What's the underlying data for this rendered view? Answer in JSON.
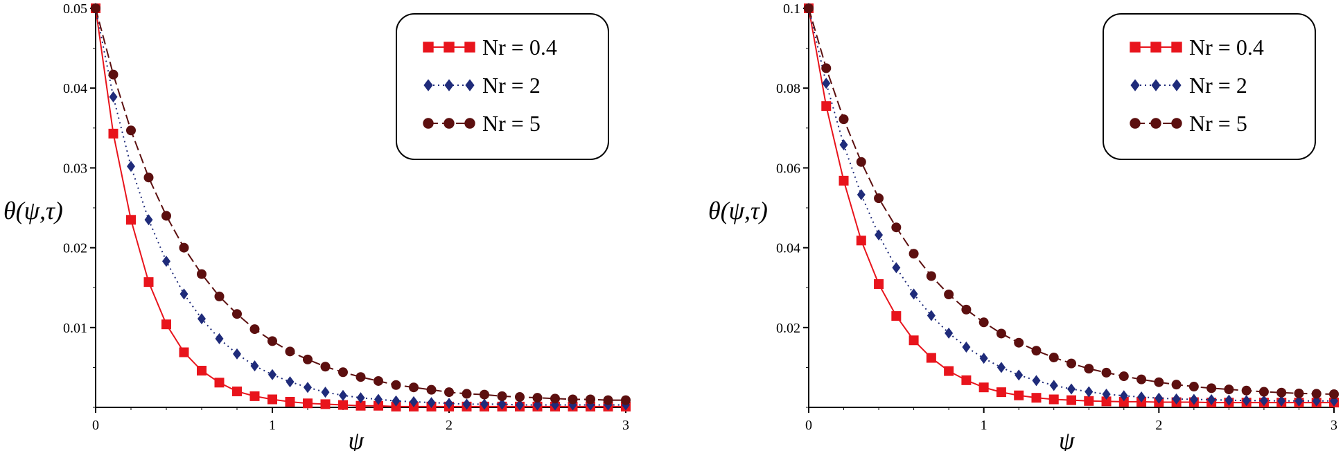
{
  "chart_data": [
    {
      "type": "line",
      "xlabel": "ψ",
      "ylabel": "θ(ψ,τ)",
      "xlim": [
        0,
        3
      ],
      "ylim": [
        0,
        0.05
      ],
      "xticks": [
        "0",
        "1",
        "2",
        "3"
      ],
      "yticks": [
        "0.01",
        "0.02",
        "0.03",
        "0.04",
        "0.05"
      ],
      "grid": false,
      "legend_position": "top-right",
      "x": [
        0,
        0.1,
        0.2,
        0.3,
        0.4,
        0.5,
        0.6,
        0.7,
        0.8,
        0.9,
        1.0,
        1.1,
        1.2,
        1.3,
        1.4,
        1.5,
        1.6,
        1.7,
        1.8,
        1.9,
        2.0,
        2.1,
        2.2,
        2.3,
        2.4,
        2.5,
        2.6,
        2.7,
        2.8,
        2.9,
        3.0
      ],
      "series": [
        {
          "name": "Nr = 0.4",
          "color": "#e8141c",
          "marker": "square",
          "line": "solid",
          "values": [
            0.05,
            0.0343,
            0.0235,
            0.0157,
            0.0104,
            0.0069,
            0.0046,
            0.0031,
            0.002,
            0.0014,
            0.001,
            0.0007,
            0.0005,
            0.0004,
            0.0003,
            0.0002,
            0.0002,
            0.0001,
            0.0001,
            0.0001,
            0.0001,
            0.0001,
            0.0001,
            0.0001,
            0.0001,
            0.0001,
            0.0001,
            0.0001,
            0.0001,
            0.0001,
            0.0001
          ]
        },
        {
          "name": "Nr = 2",
          "color": "#1f2b7a",
          "marker": "diamond",
          "line": "dotted",
          "values": [
            0.05,
            0.0389,
            0.0302,
            0.0235,
            0.0183,
            0.0142,
            0.0111,
            0.0086,
            0.0067,
            0.0052,
            0.0041,
            0.0032,
            0.0025,
            0.0019,
            0.0015,
            0.0012,
            0.001,
            0.0008,
            0.0007,
            0.0006,
            0.0005,
            0.0004,
            0.0004,
            0.0004,
            0.0003,
            0.0003,
            0.0003,
            0.0003,
            0.0003,
            0.0003,
            0.0003
          ]
        },
        {
          "name": "Nr = 5",
          "color": "#5c0f0f",
          "marker": "circle",
          "line": "dashed",
          "values": [
            0.05,
            0.0417,
            0.0347,
            0.0288,
            0.024,
            0.02,
            0.0167,
            0.0139,
            0.0117,
            0.0098,
            0.0083,
            0.007,
            0.006,
            0.0051,
            0.0044,
            0.0038,
            0.0033,
            0.0028,
            0.0025,
            0.0022,
            0.0019,
            0.0017,
            0.0016,
            0.0014,
            0.0013,
            0.0012,
            0.0011,
            0.001,
            0.001,
            0.0009,
            0.0009
          ]
        }
      ]
    },
    {
      "type": "line",
      "xlabel": "ψ",
      "ylabel": "θ(ψ,τ)",
      "xlim": [
        0,
        3
      ],
      "ylim": [
        0,
        0.1
      ],
      "xticks": [
        "0",
        "1",
        "2",
        "3"
      ],
      "yticks": [
        "0.02",
        "0.04",
        "0.06",
        "0.08",
        "0.1"
      ],
      "grid": false,
      "legend_position": "top-right",
      "x": [
        0,
        0.1,
        0.2,
        0.3,
        0.4,
        0.5,
        0.6,
        0.7,
        0.8,
        0.9,
        1.0,
        1.1,
        1.2,
        1.3,
        1.4,
        1.5,
        1.6,
        1.7,
        1.8,
        1.9,
        2.0,
        2.1,
        2.2,
        2.3,
        2.4,
        2.5,
        2.6,
        2.7,
        2.8,
        2.9,
        3.0
      ],
      "series": [
        {
          "name": "Nr = 0.4",
          "color": "#e8141c",
          "marker": "square",
          "line": "solid",
          "values": [
            0.1,
            0.0755,
            0.0568,
            0.0418,
            0.0309,
            0.0229,
            0.0168,
            0.0124,
            0.0091,
            0.0068,
            0.005,
            0.0038,
            0.003,
            0.0024,
            0.002,
            0.0018,
            0.0016,
            0.0015,
            0.0014,
            0.0014,
            0.0013,
            0.0013,
            0.0013,
            0.0012,
            0.0012,
            0.0012,
            0.0012,
            0.0012,
            0.0012,
            0.0012,
            0.0012
          ]
        },
        {
          "name": "Nr = 2",
          "color": "#1f2b7a",
          "marker": "diamond",
          "line": "dotted",
          "values": [
            0.1,
            0.0812,
            0.0658,
            0.0533,
            0.0432,
            0.035,
            0.0284,
            0.023,
            0.0186,
            0.0151,
            0.0123,
            0.01,
            0.0081,
            0.0067,
            0.0055,
            0.0046,
            0.0039,
            0.0033,
            0.0029,
            0.0026,
            0.0023,
            0.0021,
            0.002,
            0.0019,
            0.0018,
            0.0017,
            0.0017,
            0.0016,
            0.0016,
            0.0016,
            0.0016
          ]
        },
        {
          "name": "Nr = 5",
          "color": "#5c0f0f",
          "marker": "circle",
          "line": "dashed",
          "values": [
            0.1,
            0.085,
            0.0722,
            0.0615,
            0.0524,
            0.0451,
            0.0385,
            0.0329,
            0.0283,
            0.0245,
            0.0213,
            0.0185,
            0.0162,
            0.0142,
            0.0125,
            0.011,
            0.0097,
            0.0087,
            0.0078,
            0.007,
            0.0063,
            0.0057,
            0.0052,
            0.0048,
            0.0045,
            0.0042,
            0.0039,
            0.0037,
            0.0035,
            0.0034,
            0.0033
          ]
        }
      ]
    }
  ]
}
